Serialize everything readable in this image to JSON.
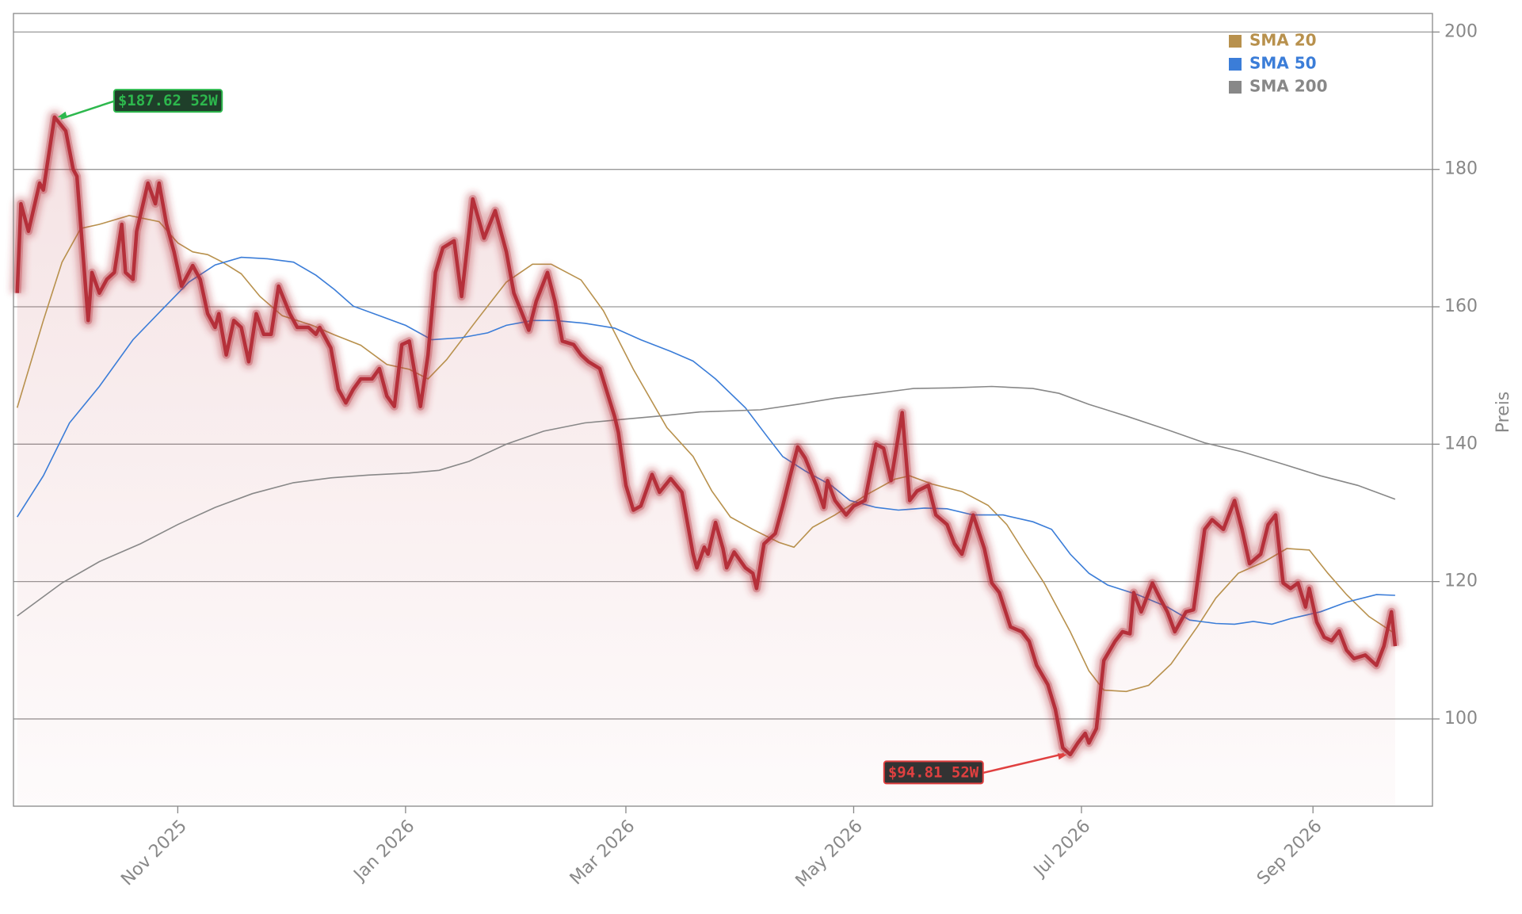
{
  "chart_data": {
    "type": "line",
    "color": "#b5303a",
    "x": [
      "2025-09-19",
      "2025-09-20",
      "2025-09-22",
      "2025-09-25",
      "2025-09-26",
      "2025-09-29",
      "2025-10-02",
      "2025-10-04",
      "2025-10-05",
      "2025-10-08",
      "2025-10-09",
      "2025-10-11",
      "2025-10-13",
      "2025-10-15",
      "2025-10-17",
      "2025-10-18",
      "2025-10-20",
      "2025-10-21",
      "2025-10-24",
      "2025-10-26",
      "2025-10-27",
      "2025-10-29",
      "2025-10-31",
      "2025-11-02",
      "2025-11-05",
      "2025-11-07",
      "2025-11-09",
      "2025-11-11",
      "2025-11-12",
      "2025-11-14",
      "2025-11-16",
      "2025-11-18",
      "2025-11-20",
      "2025-11-22",
      "2025-11-24",
      "2025-11-26",
      "2025-11-28",
      "2025-12-01",
      "2025-12-03",
      "2025-12-06",
      "2025-12-08",
      "2025-12-09",
      "2025-12-12",
      "2025-12-14",
      "2025-12-16",
      "2025-12-18",
      "2025-12-20",
      "2025-12-23",
      "2025-12-25",
      "2025-12-27",
      "2025-12-29",
      "2025-12-31",
      "2026-01-02",
      "2026-01-05",
      "2026-01-07",
      "2026-01-09",
      "2026-01-11",
      "2026-01-14",
      "2026-01-16",
      "2026-01-19",
      "2026-01-22",
      "2026-01-25",
      "2026-01-28",
      "2026-01-30",
      "2026-02-03",
      "2026-02-05",
      "2026-02-08",
      "2026-02-10",
      "2026-02-12",
      "2026-02-15",
      "2026-02-17",
      "2026-02-19",
      "2026-02-22",
      "2026-02-26",
      "2026-02-27",
      "2026-03-01",
      "2026-03-03",
      "2026-03-05",
      "2026-03-08",
      "2026-03-10",
      "2026-03-13",
      "2026-03-16",
      "2026-03-19",
      "2026-03-20",
      "2026-03-22",
      "2026-03-23",
      "2026-03-25",
      "2026-03-27",
      "2026-03-28",
      "2026-03-30",
      "2026-04-02",
      "2026-04-04",
      "2026-04-05",
      "2026-04-07",
      "2026-04-10",
      "2026-04-12",
      "2026-04-14",
      "2026-04-16",
      "2026-04-18",
      "2026-04-21",
      "2026-04-23",
      "2026-04-24",
      "2026-04-26",
      "2026-04-29",
      "2026-05-01",
      "2026-05-04",
      "2026-05-07",
      "2026-05-09",
      "2026-05-11",
      "2026-05-14",
      "2026-05-16",
      "2026-05-18",
      "2026-05-21",
      "2026-05-23",
      "2026-05-26",
      "2026-05-28",
      "2026-05-30",
      "2026-06-02",
      "2026-06-05",
      "2026-06-07",
      "2026-06-09",
      "2026-06-12",
      "2026-06-15",
      "2026-06-17",
      "2026-06-19",
      "2026-06-22",
      "2026-06-24",
      "2026-06-26",
      "2026-06-28",
      "2026-06-30",
      "2026-07-02",
      "2026-07-03",
      "2026-07-05",
      "2026-07-07",
      "2026-07-10",
      "2026-07-12",
      "2026-07-14",
      "2026-07-15",
      "2026-07-17",
      "2026-07-20",
      "2026-07-22",
      "2026-07-24",
      "2026-07-26",
      "2026-07-29",
      "2026-07-31",
      "2026-08-03",
      "2026-08-05",
      "2026-08-08",
      "2026-08-11",
      "2026-08-13",
      "2026-08-15",
      "2026-08-18",
      "2026-08-20",
      "2026-08-22",
      "2026-08-24",
      "2026-08-26",
      "2026-08-28",
      "2026-08-30",
      "2026-08-31",
      "2026-09-02",
      "2026-09-04",
      "2026-09-06",
      "2026-09-08",
      "2026-09-10",
      "2026-09-12",
      "2026-09-15",
      "2026-09-18",
      "2026-09-20",
      "2026-09-22",
      "2026-09-23"
    ],
    "values": [
      162,
      175,
      171,
      178,
      177,
      187.62,
      185.6,
      180,
      179,
      158,
      165,
      162,
      164,
      165,
      172,
      165,
      164,
      171,
      178,
      175,
      178,
      172,
      168,
      163,
      166,
      164,
      159,
      157,
      159,
      153,
      158,
      157,
      152,
      159,
      156,
      156,
      163,
      159,
      157,
      157,
      156,
      157,
      154,
      148,
      146,
      148,
      149.5,
      149.5,
      151,
      147,
      145.5,
      154.5,
      155,
      145.5,
      153,
      165,
      168.6,
      169.6,
      161.5,
      175.7,
      170,
      174,
      168,
      162,
      156.6,
      160.8,
      165,
      160.8,
      155,
      154.5,
      153,
      152,
      151,
      144,
      141.7,
      134,
      130.4,
      131,
      135.6,
      133,
      135,
      133,
      124,
      122,
      125,
      124,
      128.6,
      124.8,
      122,
      124.3,
      122,
      121.2,
      119,
      125.5,
      127,
      131,
      135.4,
      139.6,
      138,
      134,
      130.8,
      134.7,
      131.8,
      129.7,
      131,
      131.8,
      140,
      139.4,
      134.7,
      144.6,
      131.8,
      133.2,
      134,
      129.7,
      128.3,
      125.5,
      124,
      129.7,
      124.8,
      119.8,
      118.4,
      113.4,
      112.7,
      111.3,
      107.8,
      105,
      101.4,
      95.8,
      94.81,
      96.5,
      97.9,
      96.5,
      98.6,
      108.5,
      111.3,
      112.7,
      112.4,
      118.4,
      115.6,
      119.8,
      117.6,
      115.6,
      112.7,
      115.6,
      115.9,
      127.6,
      129,
      127.6,
      131.8,
      127.6,
      122.6,
      124,
      128.3,
      129.7,
      119.8,
      119,
      119.8,
      116.3,
      119,
      114.1,
      111.9,
      111.4,
      112.8,
      110,
      108.8,
      109.3,
      107.8,
      110.6,
      115.6,
      110.6
    ],
    "series": [
      {
        "name": "SMA 20",
        "color": "#b8914d",
        "x": [
          "2025-09-19",
          "2025-09-26",
          "2025-10-01",
          "2025-10-06",
          "2025-10-11",
          "2025-10-19",
          "2025-10-27",
          "2025-11-01",
          "2025-11-05",
          "2025-11-09",
          "2025-11-13",
          "2025-11-18",
          "2025-11-23",
          "2025-11-29",
          "2025-12-07",
          "2025-12-13",
          "2025-12-20",
          "2025-12-27",
          "2026-01-02",
          "2026-01-07",
          "2026-01-12",
          "2026-01-20",
          "2026-01-28",
          "2026-02-04",
          "2026-02-09",
          "2026-02-17",
          "2026-02-23",
          "2026-03-03",
          "2026-03-12",
          "2026-03-19",
          "2026-03-24",
          "2026-03-29",
          "2026-04-04",
          "2026-04-11",
          "2026-04-15",
          "2026-04-20",
          "2026-04-26",
          "2026-05-04",
          "2026-05-12",
          "2026-05-16",
          "2026-05-22",
          "2026-05-30",
          "2026-06-06",
          "2026-06-11",
          "2026-06-16",
          "2026-06-21",
          "2026-06-28",
          "2026-07-03",
          "2026-07-07",
          "2026-07-13",
          "2026-07-19",
          "2026-07-25",
          "2026-08-01",
          "2026-08-06",
          "2026-08-12",
          "2026-08-19",
          "2026-08-25",
          "2026-08-31",
          "2026-09-05",
          "2026-09-10",
          "2026-09-16",
          "2026-09-23"
        ],
        "values": [
          145.3,
          158,
          166.5,
          171.4,
          172,
          173.3,
          172.4,
          169.3,
          168,
          167.6,
          166.5,
          164.8,
          161.5,
          158.7,
          157.3,
          155.9,
          154.4,
          151.6,
          150.9,
          149.5,
          152.3,
          158,
          163.6,
          166.2,
          166.2,
          163.9,
          159.4,
          150.9,
          142.4,
          138.2,
          133.2,
          129.4,
          127.6,
          125.7,
          125,
          127.9,
          129.7,
          132.5,
          134.9,
          135.4,
          134.2,
          133.1,
          131.1,
          128.3,
          124,
          119.8,
          112.7,
          107,
          104.2,
          104,
          104.9,
          108,
          113.4,
          117.6,
          121.2,
          122.9,
          124.8,
          124.6,
          121.2,
          118.1,
          114.9,
          112.4
        ]
      },
      {
        "name": "SMA 50",
        "color": "#3b7dd8",
        "x": [
          "2025-09-19",
          "2025-09-26",
          "2025-10-03",
          "2025-10-11",
          "2025-10-20",
          "2025-10-28",
          "2025-11-04",
          "2025-11-11",
          "2025-11-18",
          "2025-11-25",
          "2025-12-02",
          "2025-12-08",
          "2025-12-13",
          "2025-12-18",
          "2025-12-25",
          "2026-01-01",
          "2026-01-08",
          "2026-01-16",
          "2026-01-23",
          "2026-01-28",
          "2026-02-04",
          "2026-02-10",
          "2026-02-18",
          "2026-02-26",
          "2026-03-05",
          "2026-03-13",
          "2026-03-19",
          "2026-03-25",
          "2026-04-02",
          "2026-04-08",
          "2026-04-12",
          "2026-04-18",
          "2026-04-25",
          "2026-04-30",
          "2026-05-07",
          "2026-05-13",
          "2026-05-20",
          "2026-05-26",
          "2026-06-02",
          "2026-06-10",
          "2026-06-18",
          "2026-06-23",
          "2026-06-28",
          "2026-07-03",
          "2026-07-08",
          "2026-07-16",
          "2026-07-24",
          "2026-07-30",
          "2026-08-06",
          "2026-08-11",
          "2026-08-16",
          "2026-08-21",
          "2026-08-26",
          "2026-09-03",
          "2026-09-10",
          "2026-09-18",
          "2026-09-23"
        ],
        "values": [
          129.4,
          135.4,
          143.1,
          148.4,
          155.2,
          159.7,
          163.6,
          166.1,
          167.2,
          167,
          166.5,
          164.6,
          162.5,
          160.1,
          158.7,
          157.3,
          155.2,
          155.5,
          156.2,
          157.3,
          158,
          158,
          157.6,
          156.9,
          155.2,
          153.5,
          152.1,
          149.5,
          145.3,
          141,
          138.2,
          136.1,
          134,
          131.8,
          130.8,
          130.4,
          130.7,
          130.6,
          129.7,
          129.7,
          128.7,
          127.6,
          124,
          121.2,
          119.5,
          118.1,
          116.3,
          114.4,
          113.9,
          113.8,
          114.2,
          113.8,
          114.6,
          115.6,
          117,
          118.1,
          118
        ]
      },
      {
        "name": "SMA 200",
        "color": "#888888",
        "x": [
          "2025-09-19",
          "2025-10-01",
          "2025-10-11",
          "2025-10-22",
          "2025-11-01",
          "2025-11-11",
          "2025-11-21",
          "2025-12-02",
          "2025-12-12",
          "2025-12-22",
          "2026-01-02",
          "2026-01-10",
          "2026-01-18",
          "2026-01-28",
          "2026-02-07",
          "2026-02-18",
          "2026-02-28",
          "2026-03-10",
          "2026-03-21",
          "2026-04-06",
          "2026-04-16",
          "2026-04-26",
          "2026-05-07",
          "2026-05-17",
          "2026-05-27",
          "2026-06-07",
          "2026-06-18",
          "2026-06-25",
          "2026-07-03",
          "2026-07-13",
          "2026-07-24",
          "2026-08-03",
          "2026-08-13",
          "2026-08-24",
          "2026-09-03",
          "2026-09-13",
          "2026-09-23"
        ],
        "values": [
          115,
          119.8,
          122.9,
          125.5,
          128.3,
          130.8,
          132.8,
          134.4,
          135.1,
          135.5,
          135.8,
          136.2,
          137.5,
          140,
          141.9,
          143.1,
          143.6,
          144.1,
          144.7,
          145,
          145.8,
          146.7,
          147.4,
          148.1,
          148.2,
          148.4,
          148.1,
          147.4,
          145.8,
          144.1,
          142.1,
          140.2,
          138.9,
          137.1,
          135.4,
          134,
          132
        ]
      }
    ],
    "annotations": [
      {
        "label": "$187.62 52W",
        "x": "2025-09-29",
        "y": 187.62,
        "color": "#2db84d"
      },
      {
        "label": "$94.81 52W",
        "x": "2026-06-28",
        "y": 94.81,
        "color": "#e04040"
      }
    ],
    "xlim": [
      "2025-09-18",
      "2026-10-03"
    ],
    "xticks": [
      {
        "value": "2025-11-01",
        "label": "Nov 2025"
      },
      {
        "value": "2026-01-01",
        "label": "Jan 2026"
      },
      {
        "value": "2026-03-01",
        "label": "Mar 2026"
      },
      {
        "value": "2026-05-01",
        "label": "May 2026"
      },
      {
        "value": "2026-07-01",
        "label": "Jul 2026"
      },
      {
        "value": "2026-09-01",
        "label": "Sep 2026"
      }
    ],
    "ylim": [
      87.3,
      202.7
    ],
    "yticks": [
      100,
      120,
      140,
      160,
      180,
      200
    ],
    "ylabel": "Preis",
    "grid": true,
    "legend": "upper right"
  }
}
